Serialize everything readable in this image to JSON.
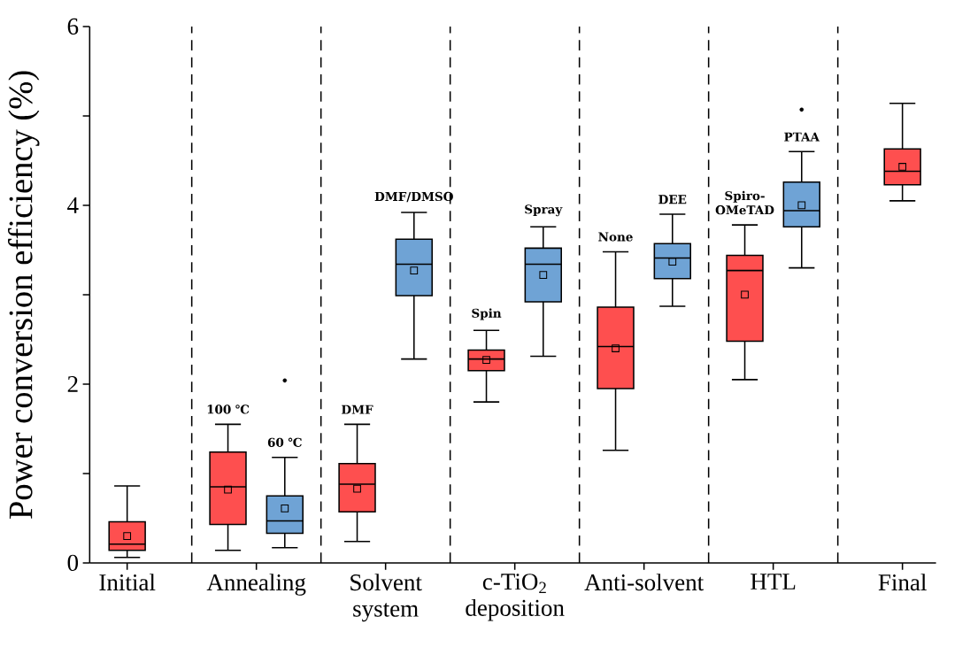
{
  "chart_data": {
    "type": "box",
    "ylabel": "Power conversion efficiency (%)",
    "categories": [
      "Initial",
      "Annealing",
      "Solvent system",
      "c-TiO$_{2}$ deposition",
      "Anti-solvent",
      "HTL",
      "Final"
    ],
    "series": [
      {
        "color": "#fe4f4f",
        "boxes": [
          {
            "low": 0.06,
            "q1": 0.14,
            "median": 0.21,
            "q3": 0.46,
            "high": 0.86,
            "mean": 0.3
          },
          {
            "low": 0.14,
            "q1": 0.43,
            "median": 0.85,
            "q3": 1.24,
            "high": 1.55,
            "mean": 0.82
          },
          {
            "low": 0.24,
            "q1": 0.57,
            "median": 0.88,
            "q3": 1.11,
            "high": 1.55,
            "mean": 0.83
          },
          {
            "low": 1.8,
            "q1": 2.15,
            "median": 2.28,
            "q3": 2.38,
            "high": 2.6,
            "mean": 2.27
          },
          {
            "low": 1.26,
            "q1": 1.95,
            "median": 2.42,
            "q3": 2.86,
            "high": 3.48,
            "mean": 2.4
          },
          {
            "low": 2.05,
            "q1": 2.48,
            "median": 3.27,
            "q3": 3.44,
            "high": 3.78,
            "mean": 3.0
          },
          {
            "low": 4.05,
            "q1": 4.23,
            "median": 4.38,
            "q3": 4.63,
            "high": 5.14,
            "mean": 4.43
          }
        ]
      },
      {
        "color": "#6fa3d5",
        "boxes": [
          null,
          {
            "low": 0.17,
            "q1": 0.33,
            "median": 0.47,
            "q3": 0.75,
            "high": 1.18,
            "mean": 0.61,
            "outliers": [
              2.04
            ]
          },
          {
            "low": 2.28,
            "q1": 2.99,
            "median": 3.34,
            "q3": 3.62,
            "high": 3.92,
            "mean": 3.27
          },
          {
            "low": 2.31,
            "q1": 2.92,
            "median": 3.34,
            "q3": 3.52,
            "high": 3.76,
            "mean": 3.22
          },
          {
            "low": 2.87,
            "q1": 3.18,
            "median": 3.41,
            "q3": 3.57,
            "high": 3.9,
            "mean": 3.37
          },
          {
            "low": 3.3,
            "q1": 3.76,
            "median": 3.94,
            "q3": 4.26,
            "high": 4.6,
            "mean": 4.0,
            "outliers": [
              5.07
            ]
          },
          null
        ]
      }
    ],
    "ylim": [
      0,
      6
    ],
    "yticks": [
      0,
      {
        "value": 1,
        "label": null
      },
      2,
      {
        "value": 3,
        "label": null
      },
      4,
      {
        "value": 5,
        "label": null
      },
      6
    ],
    "annotations": [
      "100 ℃",
      "60 ℃",
      "DMF",
      "DMF/DMSO",
      "Spin",
      "Spray",
      "None",
      "DEE",
      "Spiro-OMeTAD",
      "PTAA"
    ]
  }
}
